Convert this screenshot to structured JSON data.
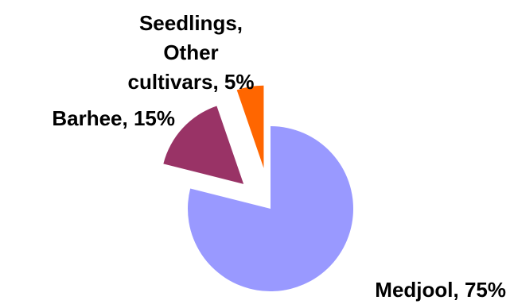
{
  "chart_data": {
    "type": "pie",
    "title": "",
    "exploded": true,
    "slices": [
      {
        "name": "Medjool",
        "value": 75,
        "label": "Medjool, 75%",
        "color": "#9999ff"
      },
      {
        "name": "Barhee",
        "value": 15,
        "label": "Barhee, 15%",
        "color": "#993366"
      },
      {
        "name": "Seedlings, Other cultivars",
        "value": 5,
        "label_lines": [
          "Seedlings,",
          "Other",
          "cultivars, 5%"
        ],
        "color": "#ff6600"
      }
    ],
    "legend": "none"
  }
}
